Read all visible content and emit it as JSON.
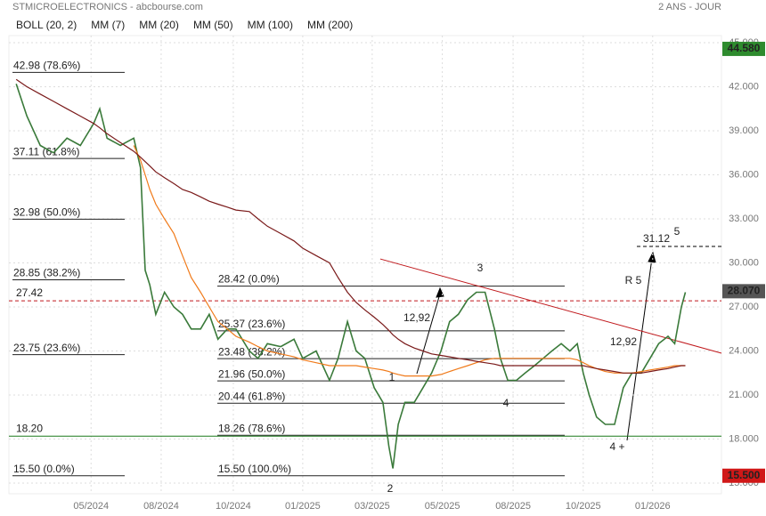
{
  "chart_data": {
    "type": "line",
    "title": "STMICROELECTRONICS - abcbourse.com",
    "subtitle": "2 ANS - JOUR",
    "legend": [
      {
        "name": "BOLL (20, 2)",
        "color": "#333333"
      },
      {
        "name": "MM (7)",
        "color": "#1a8a1a"
      },
      {
        "name": "MM (20)",
        "color": "#1f2fd0"
      },
      {
        "name": "MM (50)",
        "color": "#c0181c"
      },
      {
        "name": "MM (100)",
        "color": "#f07a1a"
      },
      {
        "name": "MM (200)",
        "color": "#7a1a1a"
      }
    ],
    "x": [
      1.1,
      2.7,
      4.7,
      6.7,
      8.7,
      10.7,
      12.7,
      13.6,
      14.7,
      16.7,
      18.7,
      19.7,
      20.4,
      21.1,
      22,
      23.3,
      24.7,
      26,
      27.3,
      28.7,
      30,
      31.3,
      32.7,
      34,
      36,
      37.3,
      38.7,
      40.7,
      42.7,
      44,
      46,
      48,
      49.3,
      50.7,
      52,
      53.3,
      54.7,
      56,
      56.9,
      57.5,
      58.3,
      59.3,
      60.7,
      62,
      63.3,
      64.7,
      66,
      67.3,
      68.7,
      70,
      71.3,
      72.7,
      73.6,
      74.7,
      76,
      77.3,
      78.7,
      80,
      81.3,
      82.7,
      84,
      85.1,
      86,
      86.9,
      88,
      89.3,
      90.7,
      92,
      93.3,
      94.7,
      96,
      97.3,
      98.7,
      99.7,
      100.7,
      101.3
    ],
    "series": [
      {
        "color": "#3a7a3a",
        "values": [
          42.2,
          40.0,
          38.0,
          37.5,
          38.5,
          38.0,
          39.5,
          40.5,
          38.5,
          38.0,
          38.5,
          36.5,
          29.5,
          28.5,
          26.5,
          28.0,
          27.0,
          26.5,
          25.5,
          25.5,
          26.5,
          24.8,
          25.5,
          25.5,
          24.0,
          23.5,
          24.5,
          24.3,
          24.8,
          23.5,
          24.0,
          22.0,
          23.5,
          26.0,
          24.0,
          23.5,
          21.5,
          20.5,
          17.5,
          16.0,
          19.0,
          20.5,
          20.5,
          21.5,
          22.5,
          24.0,
          26.0,
          26.5,
          27.5,
          28.0,
          28.0,
          25.5,
          23.5,
          22.0,
          22.0,
          22.5,
          23.0,
          23.5,
          24.0,
          24.5,
          24.0,
          24.5,
          22.5,
          21.0,
          19.5,
          19.0,
          19.0,
          21.5,
          22.5,
          22.5,
          23.5,
          24.5,
          25.0,
          24.5,
          27.0,
          28.0
        ]
      },
      {
        "name": "MM (100)",
        "color": "#f07a1a",
        "values": [
          null,
          null,
          null,
          null,
          null,
          null,
          null,
          null,
          null,
          null,
          38.0,
          37.0,
          36.0,
          35.0,
          34.0,
          33.0,
          32.0,
          30.5,
          29.0,
          28.0,
          27.0,
          26.0,
          25.5,
          25.0,
          24.6,
          24.3,
          24.0,
          23.8,
          23.6,
          23.4,
          23.2,
          23.0,
          23.0,
          23.0,
          23.0,
          22.9,
          22.8,
          22.7,
          22.6,
          22.5,
          22.4,
          22.3,
          22.3,
          22.3,
          22.3,
          22.4,
          22.6,
          22.8,
          23.0,
          23.2,
          23.4,
          23.5,
          23.5,
          23.5,
          23.5,
          23.5,
          23.5,
          23.5,
          23.5,
          23.5,
          23.5,
          23.4,
          23.2,
          23.0,
          22.8,
          22.6,
          22.5,
          22.5,
          22.5,
          22.6,
          22.7,
          22.8,
          22.9,
          23.0,
          23.0,
          23.0
        ]
      },
      {
        "name": "MM (200)",
        "color": "#7a1a1a",
        "values": [
          42.5,
          42.0,
          41.5,
          41.0,
          40.5,
          40.0,
          39.5,
          39.2,
          38.8,
          38.2,
          37.6,
          37.2,
          36.9,
          36.6,
          36.2,
          35.8,
          35.4,
          35.0,
          34.8,
          34.5,
          34.2,
          34.0,
          33.8,
          33.6,
          33.5,
          33.0,
          32.5,
          32.0,
          31.5,
          31.0,
          30.5,
          30.0,
          29.0,
          28.0,
          27.3,
          26.8,
          26.3,
          25.8,
          25.4,
          25.1,
          24.8,
          24.5,
          24.2,
          24.0,
          23.8,
          23.7,
          23.6,
          23.5,
          23.4,
          23.3,
          23.2,
          23.1,
          23.0,
          23.0,
          23.0,
          23.0,
          23.0,
          23.0,
          23.0,
          23.0,
          23.0,
          23.0,
          23.0,
          22.9,
          22.8,
          22.7,
          22.6,
          22.5,
          22.5,
          22.5,
          22.6,
          22.7,
          22.8,
          22.9,
          23.0,
          23.0
        ]
      }
    ],
    "xlim": [
      0,
      106.7
    ],
    "xticks": [
      {
        "value": 12.3,
        "label": "05/2024"
      },
      {
        "value": 22.8,
        "label": "08/2024"
      },
      {
        "value": 33.6,
        "label": "10/2024"
      },
      {
        "value": 44,
        "label": "01/2025"
      },
      {
        "value": 54.4,
        "label": "03/2025"
      },
      {
        "value": 64.9,
        "label": "05/2025"
      },
      {
        "value": 75.5,
        "label": "08/2025"
      },
      {
        "value": 86,
        "label": "10/2025"
      },
      {
        "value": 96.4,
        "label": "01/2026"
      }
    ],
    "ylim": [
      15,
      45
    ],
    "yticks": [
      {
        "value": 15,
        "label": "15.000"
      },
      {
        "value": 18,
        "label": "18.000"
      },
      {
        "value": 21,
        "label": "21.000"
      },
      {
        "value": 24,
        "label": "24.000"
      },
      {
        "value": 27,
        "label": "27.000"
      },
      {
        "value": 30,
        "label": "30.000"
      },
      {
        "value": 33,
        "label": "33.000"
      },
      {
        "value": 36,
        "label": "36.000"
      },
      {
        "value": 39,
        "label": "39.000"
      },
      {
        "value": 42,
        "label": "42.000"
      },
      {
        "value": 45,
        "label": "45.000"
      }
    ],
    "grid": true,
    "fib_left": [
      {
        "value": 42.98,
        "label": "42.98  (78.6%)"
      },
      {
        "value": 37.11,
        "label": "37.11  (61.8%)"
      },
      {
        "value": 32.98,
        "label": "32.98  (50.0%)"
      },
      {
        "value": 28.85,
        "label": "28.85  (38.2%)"
      },
      {
        "value": 23.75,
        "label": "23.75  (23.6%)"
      },
      {
        "value": 15.5,
        "label": "15.50  (0.0%)"
      }
    ],
    "fib_right": [
      {
        "value": 28.42,
        "label": "28.42  (0.0%)"
      },
      {
        "value": 25.37,
        "label": "25.37  (23.6%)"
      },
      {
        "value": 23.48,
        "label": "23.48  (38.2%)"
      },
      {
        "value": 21.96,
        "label": "21.96  (50.0%)"
      },
      {
        "value": 20.44,
        "label": "20.44  (61.8%)"
      },
      {
        "value": 18.26,
        "label": "18.26  (78.6%)"
      },
      {
        "value": 15.5,
        "label": "15.50  (100.0%)"
      }
    ],
    "hlines": [
      {
        "value": 27.42,
        "label": "27.42",
        "color": "#c0181c"
      },
      {
        "value": 18.2,
        "label": "18.20",
        "color": "#1a7a1a"
      },
      {
        "value": 31.12,
        "label": "31.12",
        "color": "#000000"
      }
    ],
    "price_tags": [
      {
        "value": 44.58,
        "label": "44.580",
        "color": "#2e8b2e"
      },
      {
        "value": 28.07,
        "label": "28.070",
        "color": "#555555"
      },
      {
        "value": 15.5,
        "label": "15.500",
        "color": "#d01818"
      }
    ],
    "trendline": {
      "x": [
        55.6,
        106.7
      ],
      "values": [
        30.27,
        23.85
      ],
      "color": "#c0181c"
    },
    "annotations": [
      "1",
      "2",
      "3",
      "4",
      "4 +",
      "5",
      "R 5",
      "12,92",
      "12,92"
    ]
  }
}
